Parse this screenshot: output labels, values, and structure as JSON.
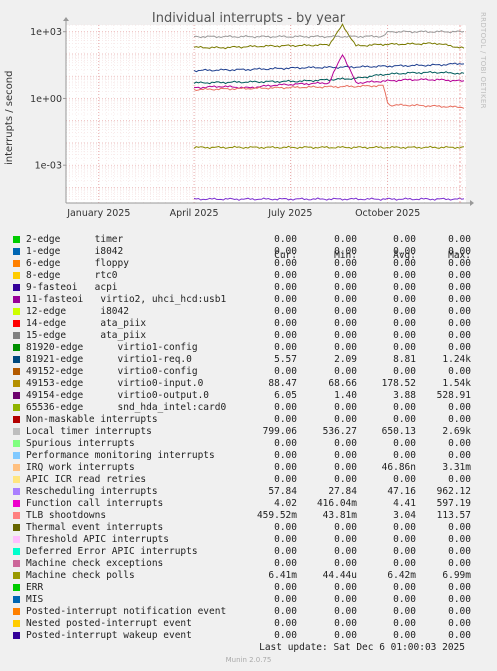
{
  "chart_data": {
    "type": "line",
    "title": "Individual interrupts - by year",
    "ylabel": "interrupts / second",
    "yscale": "log",
    "ylim": [
      2e-05,
      2000
    ],
    "yticks": [
      {
        "v": 1000,
        "label": "1e+03"
      },
      {
        "v": 1,
        "label": "1e+00"
      },
      {
        "v": 0.001,
        "label": "1e-03"
      }
    ],
    "x_range_days": [
      0,
      378
    ],
    "xticks": [
      {
        "label": "January 2025",
        "day": 31,
        "grid": true
      },
      {
        "label": "April 2025",
        "day": 121,
        "grid": true
      },
      {
        "label": "July 2025",
        "day": 212,
        "grid": true
      },
      {
        "label": "October 2025",
        "day": 304,
        "grid": true
      }
    ],
    "data_start_day": 121,
    "series": [
      {
        "color": "#7a7a00",
        "start": 121,
        "points": [
          [
            0,
            200
          ],
          [
            0.1,
            190
          ],
          [
            0.2,
            215
          ],
          [
            0.3,
            230
          ],
          [
            0.4,
            240
          ],
          [
            0.5,
            260
          ],
          [
            0.55,
            2000
          ],
          [
            0.6,
            230
          ],
          [
            0.7,
            270
          ],
          [
            0.8,
            280
          ],
          [
            0.9,
            300
          ],
          [
            1,
            180
          ]
        ]
      },
      {
        "color": "#999999",
        "start": 121,
        "points": [
          [
            0,
            600
          ],
          [
            0.2,
            600
          ],
          [
            0.4,
            600
          ],
          [
            0.6,
            610
          ],
          [
            0.7,
            620
          ],
          [
            0.72,
            1000
          ],
          [
            0.8,
            1000
          ],
          [
            1,
            1000
          ]
        ]
      },
      {
        "color": "#1f3f8f",
        "start": 121,
        "points": [
          [
            0,
            18
          ],
          [
            0.2,
            20
          ],
          [
            0.4,
            24
          ],
          [
            0.6,
            26
          ],
          [
            0.7,
            28
          ],
          [
            0.8,
            30
          ],
          [
            0.9,
            32
          ],
          [
            1,
            38
          ]
        ]
      },
      {
        "color": "#005b5b",
        "start": 121,
        "points": [
          [
            0,
            5
          ],
          [
            0.2,
            5.5
          ],
          [
            0.4,
            6
          ],
          [
            0.5,
            7
          ],
          [
            0.6,
            8
          ],
          [
            0.7,
            12
          ],
          [
            0.8,
            14
          ],
          [
            0.9,
            15
          ],
          [
            1,
            13
          ]
        ]
      },
      {
        "color": "#b40096",
        "start": 121,
        "points": [
          [
            0,
            3
          ],
          [
            0.1,
            3.5
          ],
          [
            0.2,
            3
          ],
          [
            0.3,
            4
          ],
          [
            0.4,
            4.5
          ],
          [
            0.5,
            5
          ],
          [
            0.55,
            100
          ],
          [
            0.6,
            5
          ],
          [
            0.7,
            6
          ],
          [
            0.8,
            7
          ],
          [
            0.9,
            7
          ],
          [
            1,
            6
          ]
        ]
      },
      {
        "color": "#e87060",
        "start": 121,
        "points": [
          [
            0,
            2.5
          ],
          [
            0.2,
            2.8
          ],
          [
            0.4,
            3.2
          ],
          [
            0.6,
            3.5
          ],
          [
            0.7,
            3.8
          ],
          [
            0.72,
            0.5
          ],
          [
            0.8,
            0.5
          ],
          [
            1,
            0.4
          ]
        ]
      },
      {
        "color": "#8a8a00",
        "start": 121,
        "points": [
          [
            0,
            0.0063
          ],
          [
            1,
            0.0063
          ]
        ]
      },
      {
        "color": "#7b2fd0",
        "start": 121,
        "points": [
          [
            0,
            3e-05
          ],
          [
            1,
            3e-05
          ]
        ]
      }
    ]
  },
  "legend": {
    "headers": [
      "Cur:",
      "Min:",
      "Avg:",
      "Max:"
    ],
    "rows": [
      {
        "label": "2-edge      timer",
        "color": "#00cc00",
        "cur": "0.00",
        "min": "0.00",
        "avg": "0.00",
        "max": "0.00"
      },
      {
        "label": "1-edge      i8042",
        "color": "#0066b3",
        "cur": "0.00",
        "min": "0.00",
        "avg": "0.00",
        "max": "0.00"
      },
      {
        "label": "6-edge      floppy",
        "color": "#ff8000",
        "cur": "0.00",
        "min": "0.00",
        "avg": "0.00",
        "max": "0.00"
      },
      {
        "label": "8-edge      rtc0",
        "color": "#ffcc00",
        "cur": "0.00",
        "min": "0.00",
        "avg": "0.00",
        "max": "0.00"
      },
      {
        "label": "9-fasteoi   acpi",
        "color": "#330099",
        "cur": "0.00",
        "min": "0.00",
        "avg": "0.00",
        "max": "0.00"
      },
      {
        "label": "11-fasteoi   virtio2, uhci_hcd:usb1",
        "color": "#990099",
        "cur": "0.00",
        "min": "0.00",
        "avg": "0.00",
        "max": "0.00"
      },
      {
        "label": "12-edge      i8042",
        "color": "#ccff00",
        "cur": "0.00",
        "min": "0.00",
        "avg": "0.00",
        "max": "0.00"
      },
      {
        "label": "14-edge      ata_piix",
        "color": "#ff0000",
        "cur": "0.00",
        "min": "0.00",
        "avg": "0.00",
        "max": "0.00"
      },
      {
        "label": "15-edge      ata_piix",
        "color": "#808080",
        "cur": "0.00",
        "min": "0.00",
        "avg": "0.00",
        "max": "0.00"
      },
      {
        "label": "81920-edge      virtio1-config",
        "color": "#008f00",
        "cur": "0.00",
        "min": "0.00",
        "avg": "0.00",
        "max": "0.00"
      },
      {
        "label": "81921-edge      virtio1-req.0",
        "color": "#00487d",
        "cur": "5.57",
        "min": "2.09",
        "avg": "8.81",
        "max": "1.24k"
      },
      {
        "label": "49152-edge      virtio0-config",
        "color": "#b35a00",
        "cur": "0.00",
        "min": "0.00",
        "avg": "0.00",
        "max": "0.00"
      },
      {
        "label": "49153-edge      virtio0-input.0",
        "color": "#b38f00",
        "cur": "88.47",
        "min": "68.66",
        "avg": "178.52",
        "max": "1.54k"
      },
      {
        "label": "49154-edge      virtio0-output.0",
        "color": "#6b006b",
        "cur": "6.05",
        "min": "1.40",
        "avg": "3.88",
        "max": "528.91"
      },
      {
        "label": "65536-edge      snd_hda_intel:card0",
        "color": "#8fb300",
        "cur": "0.00",
        "min": "0.00",
        "avg": "0.00",
        "max": "0.00"
      },
      {
        "label": "Non-maskable interrupts",
        "color": "#b30000",
        "cur": "0.00",
        "min": "0.00",
        "avg": "0.00",
        "max": "0.00"
      },
      {
        "label": "Local timer interrupts",
        "color": "#bebebe",
        "cur": "799.06",
        "min": "536.27",
        "avg": "650.13",
        "max": "2.69k"
      },
      {
        "label": "Spurious interrupts",
        "color": "#80ff80",
        "cur": "0.00",
        "min": "0.00",
        "avg": "0.00",
        "max": "0.00"
      },
      {
        "label": "Performance monitoring interrupts",
        "color": "#80c9ff",
        "cur": "0.00",
        "min": "0.00",
        "avg": "0.00",
        "max": "0.00"
      },
      {
        "label": "IRQ work interrupts",
        "color": "#ffc080",
        "cur": "0.00",
        "min": "0.00",
        "avg": "46.86n",
        "max": "3.31m"
      },
      {
        "label": "APIC ICR read retries",
        "color": "#ffe680",
        "cur": "0.00",
        "min": "0.00",
        "avg": "0.00",
        "max": "0.00"
      },
      {
        "label": "Rescheduling interrupts",
        "color": "#aa80ff",
        "cur": "57.84",
        "min": "27.84",
        "avg": "47.16",
        "max": "962.12"
      },
      {
        "label": "Function call interrupts",
        "color": "#ee00cc",
        "cur": "4.02",
        "min": "416.04m",
        "avg": "4.41",
        "max": "597.19"
      },
      {
        "label": "TLB shootdowns",
        "color": "#ff8080",
        "cur": "459.52m",
        "min": "43.81m",
        "avg": "3.04",
        "max": "113.57"
      },
      {
        "label": "Thermal event interrupts",
        "color": "#666600",
        "cur": "0.00",
        "min": "0.00",
        "avg": "0.00",
        "max": "0.00"
      },
      {
        "label": "Threshold APIC interrupts",
        "color": "#ffbfff",
        "cur": "0.00",
        "min": "0.00",
        "avg": "0.00",
        "max": "0.00"
      },
      {
        "label": "Deferred Error APIC interrupts",
        "color": "#00ffcc",
        "cur": "0.00",
        "min": "0.00",
        "avg": "0.00",
        "max": "0.00"
      },
      {
        "label": "Machine check exceptions",
        "color": "#cc6699",
        "cur": "0.00",
        "min": "0.00",
        "avg": "0.00",
        "max": "0.00"
      },
      {
        "label": "Machine check polls",
        "color": "#999900",
        "cur": "6.41m",
        "min": "44.44u",
        "avg": "6.42m",
        "max": "6.99m"
      },
      {
        "label": "ERR",
        "color": "#00cc00",
        "cur": "0.00",
        "min": "0.00",
        "avg": "0.00",
        "max": "0.00"
      },
      {
        "label": "MIS",
        "color": "#0066b3",
        "cur": "0.00",
        "min": "0.00",
        "avg": "0.00",
        "max": "0.00"
      },
      {
        "label": "Posted-interrupt notification event",
        "color": "#ff8000",
        "cur": "0.00",
        "min": "0.00",
        "avg": "0.00",
        "max": "0.00"
      },
      {
        "label": "Nested posted-interrupt event",
        "color": "#ffcc00",
        "cur": "0.00",
        "min": "0.00",
        "avg": "0.00",
        "max": "0.00"
      },
      {
        "label": "Posted-interrupt wakeup event",
        "color": "#330099",
        "cur": "0.00",
        "min": "0.00",
        "avg": "0.00",
        "max": "0.00"
      }
    ]
  },
  "last_update": "Last update: Sat Dec  6 01:00:03 2025",
  "side_text": "RRDTOOL / TOBI OETIKER",
  "footer": "Munin 2.0.75"
}
